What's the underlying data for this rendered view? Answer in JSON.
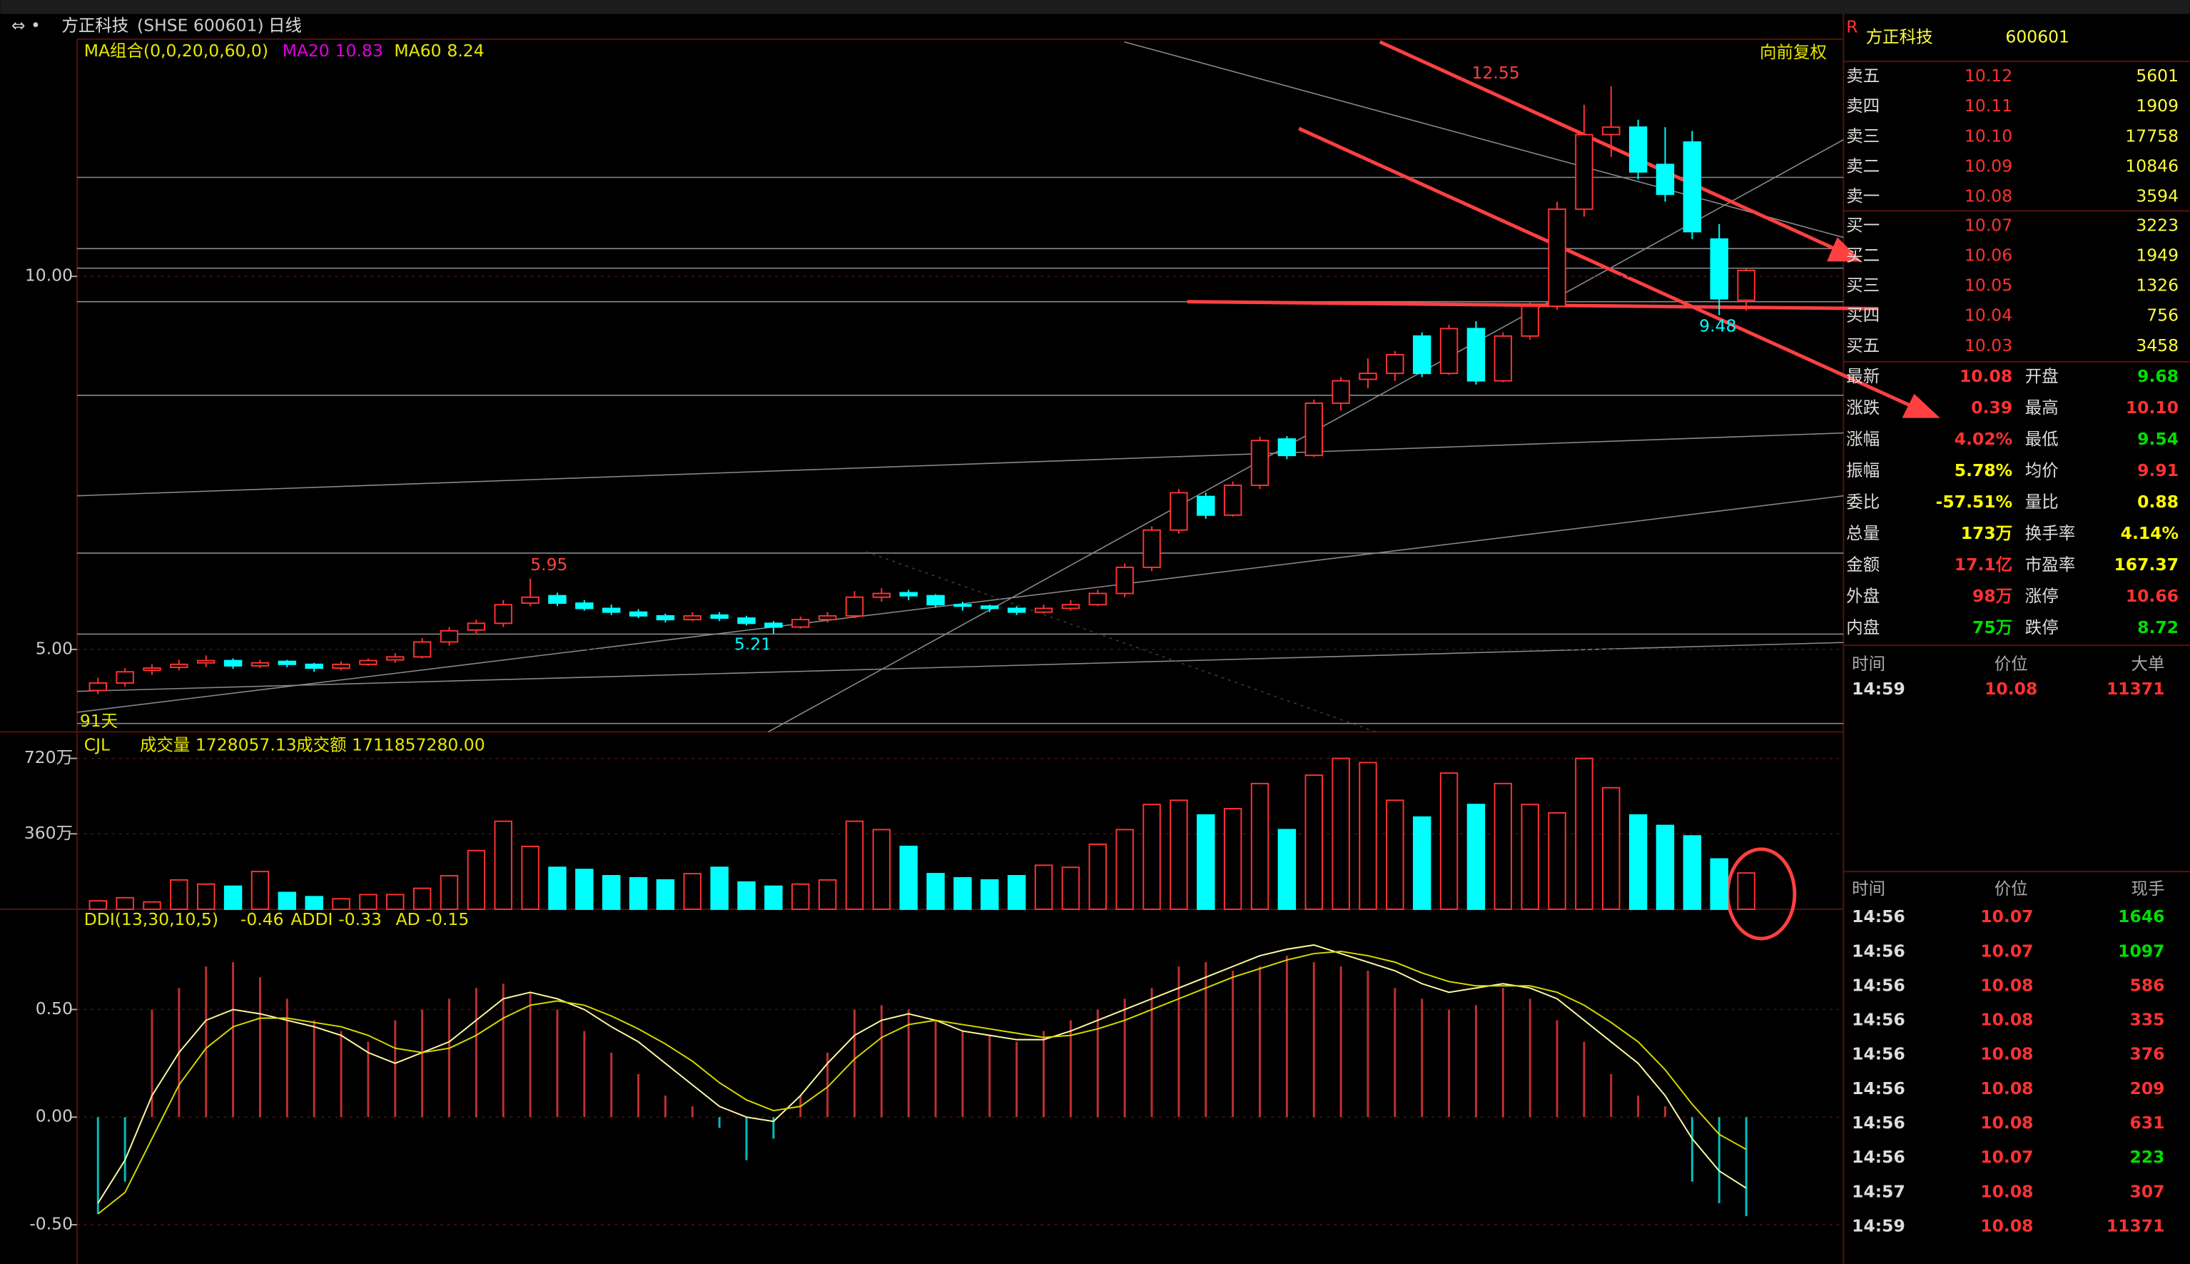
{
  "header": {
    "name": "方正科技",
    "code_label": "(SHSE 600601)",
    "period": "日线"
  },
  "chart_data": [
    {
      "type": "candlestick",
      "indicator": "MA组合(0,0,20,0,60,0)",
      "ma": [
        {
          "name": "MA20",
          "value": "10.83",
          "color": "#e000e0"
        },
        {
          "name": "MA60",
          "value": "8.24",
          "color": "#e8e800"
        }
      ],
      "adjust": "向前复权",
      "span_label": "91天",
      "annotations": [
        "12.55",
        "9.48",
        "5.95",
        "5.21"
      ],
      "up_color": "#ff3232",
      "down_color": "#00ffff",
      "ylim": [
        3.97,
        13.18
      ],
      "yticks": [
        {
          "value": 5,
          "label": "5.00"
        },
        {
          "value": 10,
          "label": "10.00"
        }
      ],
      "candles": [
        [
          4.45,
          4.62,
          4.4,
          4.55
        ],
        [
          4.55,
          4.75,
          4.5,
          4.7
        ],
        [
          4.72,
          4.8,
          4.66,
          4.75
        ],
        [
          4.76,
          4.86,
          4.72,
          4.8
        ],
        [
          4.82,
          4.92,
          4.76,
          4.85
        ],
        [
          4.85,
          4.88,
          4.74,
          4.78
        ],
        [
          4.78,
          4.86,
          4.75,
          4.82
        ],
        [
          4.84,
          4.86,
          4.76,
          4.8
        ],
        [
          4.8,
          4.82,
          4.7,
          4.75
        ],
        [
          4.75,
          4.84,
          4.72,
          4.8
        ],
        [
          4.8,
          4.88,
          4.78,
          4.85
        ],
        [
          4.86,
          4.95,
          4.82,
          4.9
        ],
        [
          4.9,
          5.15,
          4.88,
          5.1
        ],
        [
          5.1,
          5.3,
          5.05,
          5.25
        ],
        [
          5.26,
          5.4,
          5.2,
          5.35
        ],
        [
          5.35,
          5.66,
          5.3,
          5.6
        ],
        [
          5.62,
          5.95,
          5.58,
          5.7
        ],
        [
          5.72,
          5.76,
          5.58,
          5.62
        ],
        [
          5.62,
          5.66,
          5.52,
          5.55
        ],
        [
          5.55,
          5.6,
          5.46,
          5.5
        ],
        [
          5.5,
          5.54,
          5.42,
          5.45
        ],
        [
          5.45,
          5.48,
          5.36,
          5.4
        ],
        [
          5.4,
          5.5,
          5.38,
          5.45
        ],
        [
          5.46,
          5.5,
          5.38,
          5.42
        ],
        [
          5.42,
          5.45,
          5.32,
          5.35
        ],
        [
          5.35,
          5.38,
          5.21,
          5.3
        ],
        [
          5.3,
          5.44,
          5.28,
          5.4
        ],
        [
          5.4,
          5.5,
          5.36,
          5.45
        ],
        [
          5.45,
          5.78,
          5.42,
          5.7
        ],
        [
          5.7,
          5.82,
          5.64,
          5.75
        ],
        [
          5.76,
          5.8,
          5.66,
          5.72
        ],
        [
          5.72,
          5.74,
          5.56,
          5.6
        ],
        [
          5.6,
          5.64,
          5.52,
          5.58
        ],
        [
          5.58,
          5.6,
          5.5,
          5.55
        ],
        [
          5.55,
          5.58,
          5.46,
          5.5
        ],
        [
          5.5,
          5.6,
          5.48,
          5.55
        ],
        [
          5.55,
          5.66,
          5.52,
          5.6
        ],
        [
          5.6,
          5.8,
          5.58,
          5.75
        ],
        [
          5.75,
          6.15,
          5.7,
          6.1
        ],
        [
          6.1,
          6.65,
          6.05,
          6.6
        ],
        [
          6.6,
          7.15,
          6.55,
          7.1
        ],
        [
          7.05,
          7.1,
          6.75,
          6.8
        ],
        [
          6.8,
          7.25,
          6.78,
          7.2
        ],
        [
          7.2,
          7.85,
          7.15,
          7.8
        ],
        [
          7.82,
          7.86,
          7.55,
          7.6
        ],
        [
          7.6,
          8.35,
          7.58,
          8.3
        ],
        [
          8.3,
          8.65,
          8.2,
          8.6
        ],
        [
          8.62,
          8.9,
          8.5,
          8.7
        ],
        [
          8.7,
          9.0,
          8.6,
          8.95
        ],
        [
          9.2,
          9.25,
          8.65,
          8.7
        ],
        [
          8.7,
          9.35,
          8.68,
          9.3
        ],
        [
          9.3,
          9.4,
          8.55,
          8.6
        ],
        [
          8.6,
          9.25,
          8.58,
          9.2
        ],
        [
          9.2,
          9.65,
          9.15,
          9.6
        ],
        [
          9.6,
          11.0,
          9.55,
          10.9
        ],
        [
          10.9,
          12.3,
          10.8,
          11.9
        ],
        [
          11.9,
          12.55,
          11.6,
          12.0
        ],
        [
          12.0,
          12.1,
          11.3,
          11.4
        ],
        [
          11.5,
          12.0,
          11.0,
          11.1
        ],
        [
          11.8,
          11.95,
          10.5,
          10.6
        ],
        [
          10.5,
          10.7,
          9.48,
          9.7
        ],
        [
          9.68,
          10.1,
          9.54,
          10.08
        ]
      ]
    },
    {
      "type": "bar",
      "indicator": "CJL",
      "texts": [
        "成交量 1728057.13",
        "成交额 1711857280.00"
      ],
      "ylim": [
        0,
        820
      ],
      "yticks": [
        {
          "value": 360,
          "label": "360万"
        },
        {
          "value": 720,
          "label": "720万"
        }
      ],
      "values": [
        40,
        55,
        35,
        140,
        120,
        110,
        180,
        80,
        60,
        50,
        70,
        70,
        100,
        160,
        280,
        420,
        300,
        200,
        190,
        160,
        150,
        140,
        170,
        200,
        130,
        110,
        120,
        140,
        420,
        380,
        300,
        170,
        150,
        140,
        160,
        210,
        200,
        310,
        380,
        500,
        520,
        450,
        480,
        600,
        380,
        640,
        720,
        700,
        520,
        440,
        650,
        500,
        600,
        500,
        460,
        720,
        580,
        450,
        400,
        350,
        240,
        173
      ]
    },
    {
      "type": "line",
      "indicator": "DDI(13,30,10,5)",
      "indicator_value": "-0.46",
      "ylim": [
        -0.65,
        0.94
      ],
      "yticks": [
        {
          "value": -0.5,
          "label": "-0.50"
        },
        {
          "value": 0,
          "label": "0.00"
        },
        {
          "value": 0.5,
          "label": "0.50"
        }
      ],
      "bars": [
        -0.45,
        -0.3,
        0.5,
        0.6,
        0.7,
        0.72,
        0.65,
        0.55,
        0.45,
        0.4,
        0.35,
        0.45,
        0.5,
        0.55,
        0.6,
        0.62,
        0.58,
        0.5,
        0.4,
        0.3,
        0.2,
        0.1,
        0.05,
        -0.05,
        -0.2,
        -0.1,
        0.1,
        0.3,
        0.5,
        0.52,
        0.5,
        0.45,
        0.4,
        0.38,
        0.35,
        0.4,
        0.45,
        0.5,
        0.55,
        0.6,
        0.7,
        0.72,
        0.68,
        0.7,
        0.75,
        0.72,
        0.7,
        0.68,
        0.6,
        0.55,
        0.5,
        0.52,
        0.6,
        0.55,
        0.45,
        0.35,
        0.2,
        0.1,
        0.05,
        -0.3,
        -0.4,
        -0.46
      ],
      "series": [
        {
          "name": "ADDI",
          "value": "-0.33",
          "color": "#fffba0",
          "values": [
            -0.4,
            -0.2,
            0.1,
            0.3,
            0.45,
            0.5,
            0.48,
            0.45,
            0.42,
            0.38,
            0.3,
            0.25,
            0.3,
            0.35,
            0.45,
            0.55,
            0.58,
            0.55,
            0.5,
            0.42,
            0.35,
            0.25,
            0.15,
            0.05,
            0.0,
            -0.02,
            0.1,
            0.25,
            0.38,
            0.45,
            0.48,
            0.45,
            0.4,
            0.38,
            0.36,
            0.36,
            0.4,
            0.45,
            0.5,
            0.55,
            0.6,
            0.65,
            0.7,
            0.75,
            0.78,
            0.8,
            0.76,
            0.72,
            0.68,
            0.62,
            0.58,
            0.6,
            0.62,
            0.6,
            0.55,
            0.45,
            0.35,
            0.25,
            0.1,
            -0.1,
            -0.25,
            -0.33
          ]
        },
        {
          "name": "AD",
          "value": "-0.15",
          "color": "#d8d800",
          "values": [
            -0.45,
            -0.35,
            -0.1,
            0.15,
            0.32,
            0.42,
            0.46,
            0.46,
            0.44,
            0.42,
            0.38,
            0.32,
            0.3,
            0.32,
            0.38,
            0.46,
            0.52,
            0.54,
            0.52,
            0.47,
            0.41,
            0.34,
            0.26,
            0.16,
            0.08,
            0.03,
            0.05,
            0.14,
            0.27,
            0.37,
            0.43,
            0.45,
            0.43,
            0.41,
            0.39,
            0.37,
            0.38,
            0.41,
            0.45,
            0.5,
            0.55,
            0.6,
            0.65,
            0.69,
            0.73,
            0.76,
            0.77,
            0.75,
            0.72,
            0.67,
            0.63,
            0.61,
            0.61,
            0.61,
            0.58,
            0.52,
            0.44,
            0.35,
            0.22,
            0.06,
            -0.08,
            -0.15
          ]
        }
      ]
    }
  ],
  "quote": {
    "name": "方正科技",
    "code": "600601",
    "book": [
      {
        "label": "卖五",
        "price": "10.12",
        "vol": "5601"
      },
      {
        "label": "卖四",
        "price": "10.11",
        "vol": "1909"
      },
      {
        "label": "卖三",
        "price": "10.10",
        "vol": "17758"
      },
      {
        "label": "卖二",
        "price": "10.09",
        "vol": "10846"
      },
      {
        "label": "卖一",
        "price": "10.08",
        "vol": "3594"
      },
      {
        "label": "买一",
        "price": "10.07",
        "vol": "3223"
      },
      {
        "label": "买二",
        "price": "10.06",
        "vol": "1949"
      },
      {
        "label": "买三",
        "price": "10.05",
        "vol": "1326"
      },
      {
        "label": "买四",
        "price": "10.04",
        "vol": "756"
      },
      {
        "label": "买五",
        "price": "10.03",
        "vol": "3458"
      }
    ],
    "stats": [
      {
        "label": "最新",
        "value": "10.08",
        "color": "#ff3232"
      },
      {
        "label": "开盘",
        "value": "9.68",
        "color": "#00e000"
      },
      {
        "label": "涨跌",
        "value": "0.39",
        "color": "#ff3232"
      },
      {
        "label": "最高",
        "value": "10.10",
        "color": "#ff3232"
      },
      {
        "label": "涨幅",
        "value": "4.02%",
        "color": "#ff3232"
      },
      {
        "label": "最低",
        "value": "9.54",
        "color": "#00e000"
      },
      {
        "label": "振幅",
        "value": "5.78%",
        "color": "#ffff00"
      },
      {
        "label": "均价",
        "value": "9.91",
        "color": "#ff3232"
      },
      {
        "label": "委比",
        "value": "-57.51%",
        "color": "#ffff00"
      },
      {
        "label": "量比",
        "value": "0.88",
        "color": "#ffff00"
      },
      {
        "label": "总量",
        "value": "173万",
        "color": "#ffff00"
      },
      {
        "label": "换手率",
        "value": "4.14%",
        "color": "#ffff00"
      },
      {
        "label": "金额",
        "value": "17.1亿",
        "color": "#ff3232"
      },
      {
        "label": "市盈率",
        "value": "167.37",
        "color": "#ffff00"
      },
      {
        "label": "外盘",
        "value": "98万",
        "color": "#ff3232"
      },
      {
        "label": "涨停",
        "value": "10.66",
        "color": "#ff3232"
      },
      {
        "label": "内盘",
        "value": "75万",
        "color": "#00e000"
      },
      {
        "label": "跌停",
        "value": "8.72",
        "color": "#00e000"
      }
    ],
    "big_orders": {
      "headers": [
        "时间",
        "价位",
        "大单"
      ],
      "rows": [
        [
          "14:59",
          "10.08",
          "11371"
        ]
      ]
    },
    "ticks": {
      "headers": [
        "时间",
        "价位",
        "现手"
      ],
      "rows": [
        {
          "time": "14:56",
          "price": "10.07",
          "vol": "1646",
          "color": "#00e000"
        },
        {
          "time": "14:56",
          "price": "10.07",
          "vol": "1097",
          "color": "#00e000"
        },
        {
          "time": "14:56",
          "price": "10.08",
          "vol": "586",
          "color": "#ff3232"
        },
        {
          "time": "14:56",
          "price": "10.08",
          "vol": "335",
          "color": "#ff3232"
        },
        {
          "time": "14:56",
          "price": "10.08",
          "vol": "376",
          "color": "#ff3232"
        },
        {
          "time": "14:56",
          "price": "10.08",
          "vol": "209",
          "color": "#ff3232"
        },
        {
          "time": "14:56",
          "price": "10.08",
          "vol": "631",
          "color": "#ff3232"
        },
        {
          "time": "14:56",
          "price": "10.07",
          "vol": "223",
          "color": "#00e000"
        },
        {
          "time": "14:57",
          "price": "10.08",
          "vol": "307",
          "color": "#ff3232"
        },
        {
          "time": "14:59",
          "price": "10.08",
          "vol": "11371",
          "color": "#ff3232"
        }
      ]
    }
  }
}
